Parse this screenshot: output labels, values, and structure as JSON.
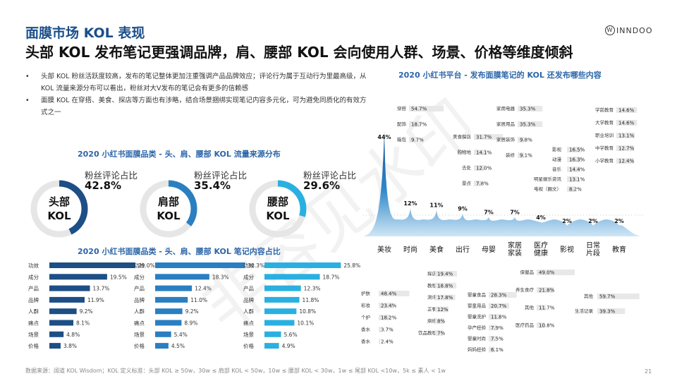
{
  "header": {
    "title_line1": "面膜市场 KOL 表现",
    "title_line2": "头部 KOL 发布笔记更强调品牌，肩、腰部 KOL 会向使用人群、场景、价格等维度倾斜",
    "logo_text": "INNDOO",
    "logo_mark": "W"
  },
  "bullets": [
    "头部 KOL 粉丝活跃度较高，发布的笔记整体更加注重强调产品品牌效应；评论行为属于互动行为里最高级，从 KOL 流量来源分布可以看出，粉丝对大V发布的笔记会有更多的信赖感",
    "面膜 KOL 在穿搭、美食、探店等方面也有涉略，结合场景捆绑实现笔记内容多元化，可为避免同质化的有效方式之一"
  ],
  "flow_title": "2020 小红书面膜品类 - 头、肩、腰部 KOL 流量来源分布",
  "content_title": "2020 小红书面膜品类 - 头、肩、腰部 KOL 笔记内容占比",
  "right_title": "2020 小红书平台 - 发布面膜笔记的 KOL 还发布哪些内容",
  "footer": "数据来源：阔道 KOL Wisdom；KOL 定义标准：头部 KOL ≥ 50w，30w ≤ 肩部 KOL < 50w，10w ≤ 腰部 KOL < 30w，1w ≤ 尾部 KOL <10w，5k ≤ 素人 < 1w",
  "page_number": "21",
  "watermark": "非容见水印",
  "colors": {
    "dark": "#1d4e86",
    "mid": "#2a7fc1",
    "light": "#2ab0e0",
    "track": "#e6e6e6",
    "bar_bg": "#e8e8e8"
  },
  "chart_data": [
    {
      "type": "pie",
      "kind": "donut",
      "donuts": [
        {
          "name": "头部\nKOL",
          "metric": "粉丝评论占比",
          "value": 42.8,
          "display": "42.8%",
          "color": "#1d4e86"
        },
        {
          "name": "肩部\nKOL",
          "metric": "粉丝评论占比",
          "value": 35.4,
          "display": "35.4%",
          "color": "#2a7fc1"
        },
        {
          "name": "腰部\nKOL",
          "metric": "粉丝评论占比",
          "value": 29.6,
          "display": "29.6%",
          "color": "#2ab0e0"
        }
      ]
    },
    {
      "type": "bar",
      "orientation": "horizontal",
      "categories": [
        "功效",
        "成分",
        "产品",
        "品牌",
        "人群",
        "痛点",
        "场景",
        "价格"
      ],
      "series": [
        {
          "values": [
            29.0,
            19.5,
            13.7,
            11.9,
            9.2,
            8.1,
            4.8,
            3.8
          ],
          "labels": [
            "29.0%",
            "19.5%",
            "13.7%",
            "11.9%",
            "9.2%",
            "8.1%",
            "4.8%",
            "3.8%"
          ],
          "color": "#1d4e86"
        },
        {
          "values": [
            30.3,
            18.3,
            12.4,
            11.0,
            9.2,
            8.9,
            5.4,
            4.5
          ],
          "labels": [
            "30.3%",
            "18.3%",
            "12.4%",
            "11.0%",
            "9.2%",
            "8.9%",
            "5.4%",
            "4.5%"
          ],
          "color": "#2a7fc1"
        },
        {
          "values": [
            25.8,
            18.7,
            12.3,
            11.8,
            10.8,
            10.1,
            5.6,
            4.9
          ],
          "labels": [
            "25.8%",
            "18.7%",
            "12.3%",
            "11.8%",
            "10.8%",
            "10.1%",
            "5.6%",
            "4.9%"
          ],
          "color": "#2ab0e0"
        }
      ]
    },
    {
      "type": "area",
      "kind": "peaks",
      "categories": [
        "美妆",
        "时尚",
        "美食",
        "出行",
        "母婴",
        "家居\n家装",
        "医疗\n健康",
        "影视",
        "日常\n片段",
        "教育"
      ],
      "values": [
        44,
        12,
        11,
        9,
        7,
        7,
        4,
        2,
        2,
        2
      ],
      "labels": [
        "44%",
        "12%",
        "11%",
        "9%",
        "7%",
        "7%",
        "4%",
        "2%",
        "2%",
        "2%"
      ]
    },
    {
      "type": "bar",
      "kind": "small-multiples",
      "groups": [
        {
          "items": [
            {
              "label": "穿搭",
              "value": 54.7,
              "display": "54.7%"
            },
            {
              "label": "配饰",
              "value": 18.7,
              "display": "18.7%"
            },
            {
              "label": "箱包",
              "value": 9.7,
              "display": "9.7%"
            }
          ]
        },
        {
          "items": [
            {
              "label": "美食探店",
              "value": 31.7,
              "display": "31.7%"
            },
            {
              "label": "购物地",
              "value": 14.1,
              "display": "14.1%"
            },
            {
              "label": "去处",
              "value": 12.0,
              "display": "12.0%"
            },
            {
              "label": "景点",
              "value": 7.8,
              "display": "7.8%"
            }
          ]
        },
        {
          "items": [
            {
              "label": "家用电器",
              "value": 35.3,
              "display": "35.3%"
            },
            {
              "label": "家居用品",
              "value": 35.3,
              "display": "35.3%"
            },
            {
              "label": "家居装饰",
              "value": 9.8,
              "display": "9.8%"
            },
            {
              "label": "装修",
              "value": 9.1,
              "display": "9.1%"
            }
          ]
        },
        {
          "items": [
            {
              "label": "影视",
              "value": 16.5,
              "display": "16.5%"
            },
            {
              "label": "动漫",
              "value": 16.3,
              "display": "16.3%"
            },
            {
              "label": "音乐",
              "value": 14.4,
              "display": "14.4%"
            },
            {
              "label": "明星娱乐资讯",
              "value": 13.1,
              "display": "13.1%"
            },
            {
              "label": "电视（圈文）",
              "value": 8.2,
              "display": "8.2%"
            }
          ]
        },
        {
          "items": [
            {
              "label": "学前教育",
              "value": 14.6,
              "display": "14.6%"
            },
            {
              "label": "大学教育",
              "value": 14.6,
              "display": "14.6%"
            },
            {
              "label": "职业培训",
              "value": 13.1,
              "display": "13.1%"
            },
            {
              "label": "中学教育",
              "value": 12.7,
              "display": "12.7%"
            },
            {
              "label": "小学教育",
              "value": 12.4,
              "display": "12.4%"
            }
          ]
        },
        {
          "items": [
            {
              "label": "护肤",
              "value": 48.4,
              "display": "48.4%"
            },
            {
              "label": "彩妆",
              "value": 23.4,
              "display": "23.4%"
            },
            {
              "label": "个护",
              "value": 18.2,
              "display": "18.2%"
            },
            {
              "label": "香水",
              "value": 3.7,
              "display": "3.7%"
            },
            {
              "label": "香水",
              "value": 2.4,
              "display": "2.4%"
            }
          ]
        },
        {
          "items": [
            {
              "label": "探店",
              "value": 19.4,
              "display": "19.4%"
            },
            {
              "label": "教程",
              "value": 18.8,
              "display": "18.8%"
            },
            {
              "label": "测评",
              "value": 17.8,
              "display": "17.8%"
            },
            {
              "label": "正餐",
              "value": 12,
              "display": "12%"
            },
            {
              "label": "烘焙",
              "value": 8,
              "display": "8%"
            },
            {
              "label": "饮品教程",
              "value": 7,
              "display": "7%"
            }
          ]
        },
        {
          "items": [
            {
              "label": "婴童食品",
              "value": 28.3,
              "display": "28.3%"
            },
            {
              "label": "婴童用品",
              "value": 20.7,
              "display": "20.7%"
            },
            {
              "label": "婴童洗护",
              "value": 11.8,
              "display": "11.8%"
            },
            {
              "label": "孕产经验",
              "value": 7.9,
              "display": "7.9%"
            },
            {
              "label": "婴童时尚",
              "value": 7.5,
              "display": "7.5%"
            },
            {
              "label": "妈妈经验",
              "value": 6.1,
              "display": "6.1%"
            }
          ]
        },
        {
          "items": [
            {
              "label": "保健品",
              "value": 49.0,
              "display": "49.0%"
            },
            {
              "label": "养生食疗",
              "value": 21.8,
              "display": "21.8%"
            },
            {
              "label": "其他",
              "value": 11.7,
              "display": "11.7%"
            },
            {
              "label": "医疗药品",
              "value": 10.8,
              "display": "10.8%"
            }
          ]
        },
        {
          "items": [
            {
              "label": "其他",
              "value": 59.7,
              "display": "59.7%"
            },
            {
              "label": "生活记录",
              "value": 39.3,
              "display": "39.3%"
            }
          ]
        }
      ]
    }
  ]
}
